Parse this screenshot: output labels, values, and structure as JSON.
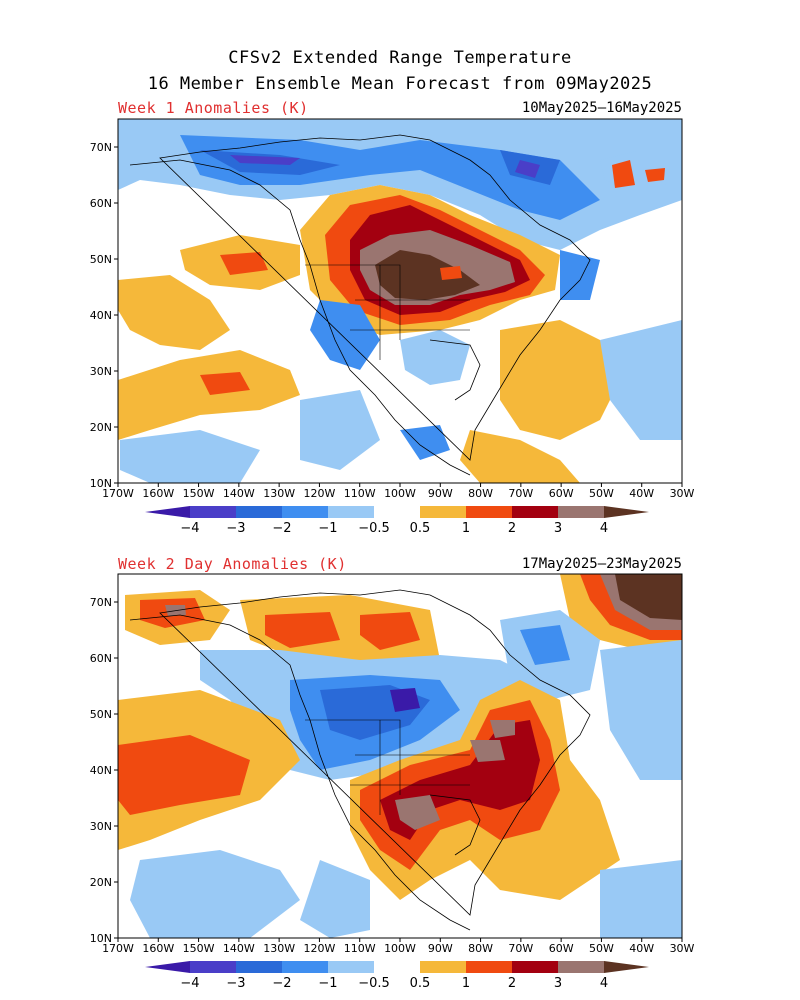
{
  "title_line1": "CFSv2 Extended Range Temperature",
  "title_line2": "16 Member Ensemble Mean Forecast from 09May2025",
  "panels": [
    {
      "label": "Week 1 Anomalies (K)",
      "dates": "10May2025–16May2025"
    },
    {
      "label": "Week 2 Day Anomalies (K)",
      "dates": "17May2025–23May2025"
    }
  ],
  "lat_labels": [
    "70N",
    "60N",
    "50N",
    "40N",
    "30N",
    "20N",
    "10N"
  ],
  "lon_labels": [
    "170W",
    "160W",
    "150W",
    "140W",
    "130W",
    "120W",
    "110W",
    "100W",
    "90W",
    "80W",
    "70W",
    "60W",
    "50W",
    "40W",
    "30W"
  ],
  "colorbar": {
    "labels": [
      "−4",
      "−3",
      "−2",
      "−1",
      "−0.5",
      "0.5",
      "1",
      "2",
      "3",
      "4"
    ],
    "colors": [
      "#3a1aa8",
      "#4a3ec8",
      "#2a6ad8",
      "#3f8ef0",
      "#99c9f5",
      "#ffffff",
      "#f5b83a",
      "#f04a10",
      "#a30010",
      "#9a7570",
      "#5c3322"
    ]
  },
  "colors": {
    "label_red": "#e03030",
    "land_line": "#000000"
  }
}
